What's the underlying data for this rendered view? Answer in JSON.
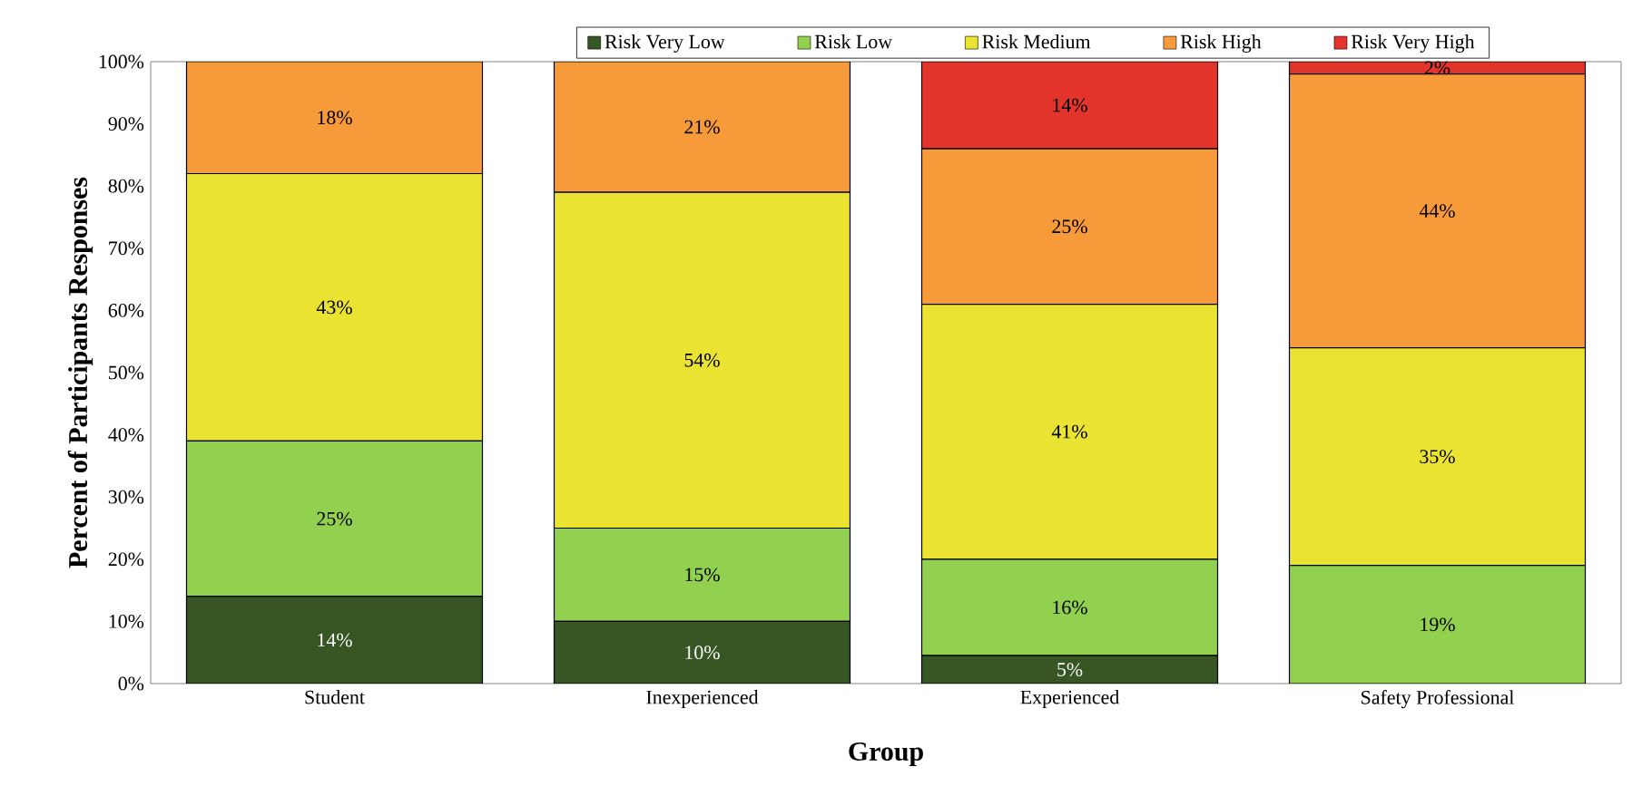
{
  "chart_data": {
    "type": "bar",
    "stacked": true,
    "xlabel": "Group",
    "ylabel": "Percent of Participants Responses",
    "categories": [
      "Student",
      "Inexperienced",
      "Experienced",
      "Safety Professional"
    ],
    "series": [
      {
        "name": "Risk Very Low",
        "color": "#375623",
        "values": [
          14,
          10,
          4.5,
          0
        ],
        "value_labels": [
          "14%",
          "10%",
          "5%",
          null
        ]
      },
      {
        "name": "Risk Low",
        "color": "#92d050",
        "values": [
          25,
          15,
          15.5,
          19
        ],
        "value_labels": [
          "25%",
          "15%",
          "16%",
          "19%"
        ]
      },
      {
        "name": "Risk Medium",
        "color": "#ebe332",
        "values": [
          43,
          54,
          41,
          35
        ],
        "value_labels": [
          "43%",
          "54%",
          "41%",
          "35%"
        ]
      },
      {
        "name": "Risk High",
        "color": "#f79a3a",
        "values": [
          18,
          21,
          25,
          44
        ],
        "value_labels": [
          "18%",
          "21%",
          "25%",
          "44%"
        ]
      },
      {
        "name": "Risk Very High",
        "color": "#e2342a",
        "values": [
          0,
          0,
          14,
          2
        ],
        "value_labels": [
          null,
          null,
          "14%",
          "2%"
        ]
      }
    ],
    "ylim": [
      0,
      100
    ],
    "yticks": [
      {
        "value": 0,
        "label": "0%"
      },
      {
        "value": 10,
        "label": "10%"
      },
      {
        "value": 20,
        "label": "20%"
      },
      {
        "value": 30,
        "label": "30%"
      },
      {
        "value": 40,
        "label": "40%"
      },
      {
        "value": 50,
        "label": "50%"
      },
      {
        "value": 60,
        "label": "60%"
      },
      {
        "value": 70,
        "label": "70%"
      },
      {
        "value": 80,
        "label": "80%"
      },
      {
        "value": 90,
        "label": "90%"
      },
      {
        "value": 100,
        "label": "100%"
      }
    ],
    "grid": false,
    "legend": "top"
  }
}
